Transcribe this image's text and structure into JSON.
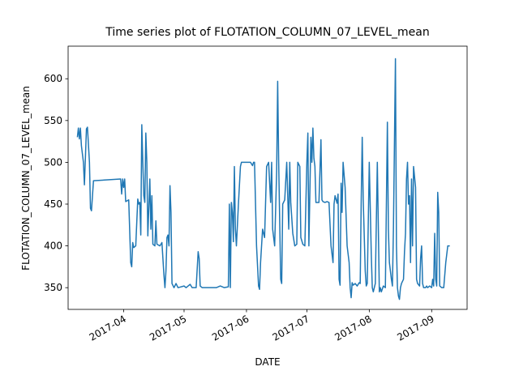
{
  "chart_data": {
    "type": "line",
    "title": "Time series plot of FLOTATION_COLUMN_07_LEVEL_mean",
    "xlabel": "DATE",
    "ylabel": "FLOTATION_COLUMN_07_LEVEL_mean",
    "color": "#1f77b4",
    "xlim": [
      63.4,
      261.6
    ],
    "ylim": [
      324,
      639
    ],
    "xticks": [
      {
        "value": 91,
        "label": "2017-04"
      },
      {
        "value": 121,
        "label": "2017-05"
      },
      {
        "value": 152,
        "label": "2017-06"
      },
      {
        "value": 182,
        "label": "2017-07"
      },
      {
        "value": 213,
        "label": "2017-08"
      },
      {
        "value": 244,
        "label": "2017-09"
      }
    ],
    "yticks": [
      350,
      400,
      450,
      500,
      550,
      600
    ],
    "x": [
      68,
      68.5,
      69,
      69.5,
      70,
      71,
      71.5,
      72.5,
      73,
      74,
      74.5,
      75,
      75.5,
      76,
      89.5,
      90,
      90.5,
      91,
      91.5,
      92,
      93.5,
      94.5,
      95,
      95.5,
      96,
      97,
      98,
      98.5,
      99,
      99.5,
      100,
      100.5,
      101,
      101.5,
      102,
      102.5,
      103,
      104,
      104.5,
      105,
      105.5,
      106.5,
      107,
      107.5,
      109,
      110,
      111,
      111.5,
      112,
      112.5,
      113,
      113.5,
      114,
      114.5,
      115,
      116,
      117,
      118,
      121,
      122,
      124,
      125,
      127,
      128,
      128.5,
      129,
      130,
      137,
      139,
      141,
      143,
      143.5,
      144,
      144.5,
      145,
      145.5,
      146,
      146.5,
      147,
      148,
      149,
      149.5,
      154,
      155,
      155.5,
      156,
      157,
      158,
      158.5,
      159,
      160,
      161,
      162,
      163,
      164,
      164.5,
      165,
      166,
      167,
      167.5,
      168,
      169,
      169.5,
      170,
      171,
      172,
      173,
      173.5,
      174,
      175,
      176,
      177,
      177.5,
      178.5,
      179,
      180,
      181,
      182,
      182.5,
      183,
      184,
      184.5,
      185,
      185.5,
      186,
      186.5,
      188,
      189,
      189.5,
      190,
      191,
      192,
      193,
      194,
      195,
      195.5,
      196,
      197,
      197.5,
      198,
      198.5,
      199,
      199.5,
      200,
      201,
      202,
      203,
      203.5,
      204,
      204.5,
      205,
      206,
      207,
      208,
      208.5,
      209,
      209.5,
      210,
      211,
      211.5,
      212,
      213,
      214,
      214.5,
      215,
      216,
      217,
      218,
      218.5,
      219,
      220,
      221,
      222,
      222.5,
      223,
      224,
      224.5,
      225,
      226,
      226.5,
      227,
      227.5,
      228,
      228.5,
      229,
      230,
      230.5,
      231,
      231.5,
      232,
      232.5,
      233,
      233.5,
      234,
      234.5,
      235,
      236,
      236.5,
      237,
      238,
      238.5,
      239,
      239.5,
      240,
      241,
      241.5,
      242,
      243,
      244,
      244.5,
      245,
      245.5,
      246,
      246.5,
      247,
      247.5,
      248,
      249,
      250,
      251,
      252,
      253
    ],
    "values": [
      530,
      541,
      528,
      541,
      520,
      500,
      473,
      540,
      542,
      500,
      445,
      442,
      460,
      478,
      480,
      462,
      480,
      470,
      480,
      453,
      455,
      380,
      375,
      404,
      398,
      400,
      456,
      450,
      452,
      413,
      545,
      500,
      460,
      452,
      535,
      500,
      412,
      480,
      420,
      460,
      402,
      400,
      430,
      402,
      400,
      404,
      365,
      350,
      370,
      410,
      413,
      400,
      472,
      440,
      355,
      350,
      355,
      350,
      352,
      350,
      354,
      350,
      350,
      393,
      385,
      352,
      350,
      350,
      352,
      350,
      351,
      450,
      350,
      452,
      440,
      405,
      495,
      420,
      400,
      450,
      495,
      500,
      500,
      496,
      500,
      500,
      400,
      352,
      348,
      380,
      420,
      410,
      495,
      500,
      452,
      500,
      420,
      400,
      490,
      597,
      500,
      360,
      355,
      450,
      455,
      500,
      420,
      500,
      452,
      415,
      400,
      402,
      500,
      495,
      410,
      402,
      400,
      500,
      535,
      400,
      530,
      500,
      541,
      505,
      495,
      452,
      452,
      527,
      455,
      453,
      452,
      453,
      452,
      400,
      380,
      450,
      460,
      451,
      462,
      360,
      353,
      475,
      440,
      500,
      470,
      400,
      380,
      350,
      338,
      356,
      353,
      355,
      352,
      356,
      355,
      454,
      530,
      455,
      370,
      352,
      355,
      500,
      390,
      350,
      345,
      355,
      500,
      345,
      350,
      345,
      352,
      350,
      548,
      420,
      380,
      360,
      352,
      420,
      624,
      400,
      350,
      340,
      336,
      350,
      355,
      360,
      393,
      415,
      480,
      500,
      450,
      460,
      380,
      480,
      400,
      495,
      470,
      360,
      355,
      352,
      385,
      400,
      355,
      350,
      350,
      352,
      350,
      352,
      350,
      360,
      352,
      415,
      360,
      352,
      464,
      440,
      352,
      350,
      350,
      380,
      400,
      400
    ]
  }
}
